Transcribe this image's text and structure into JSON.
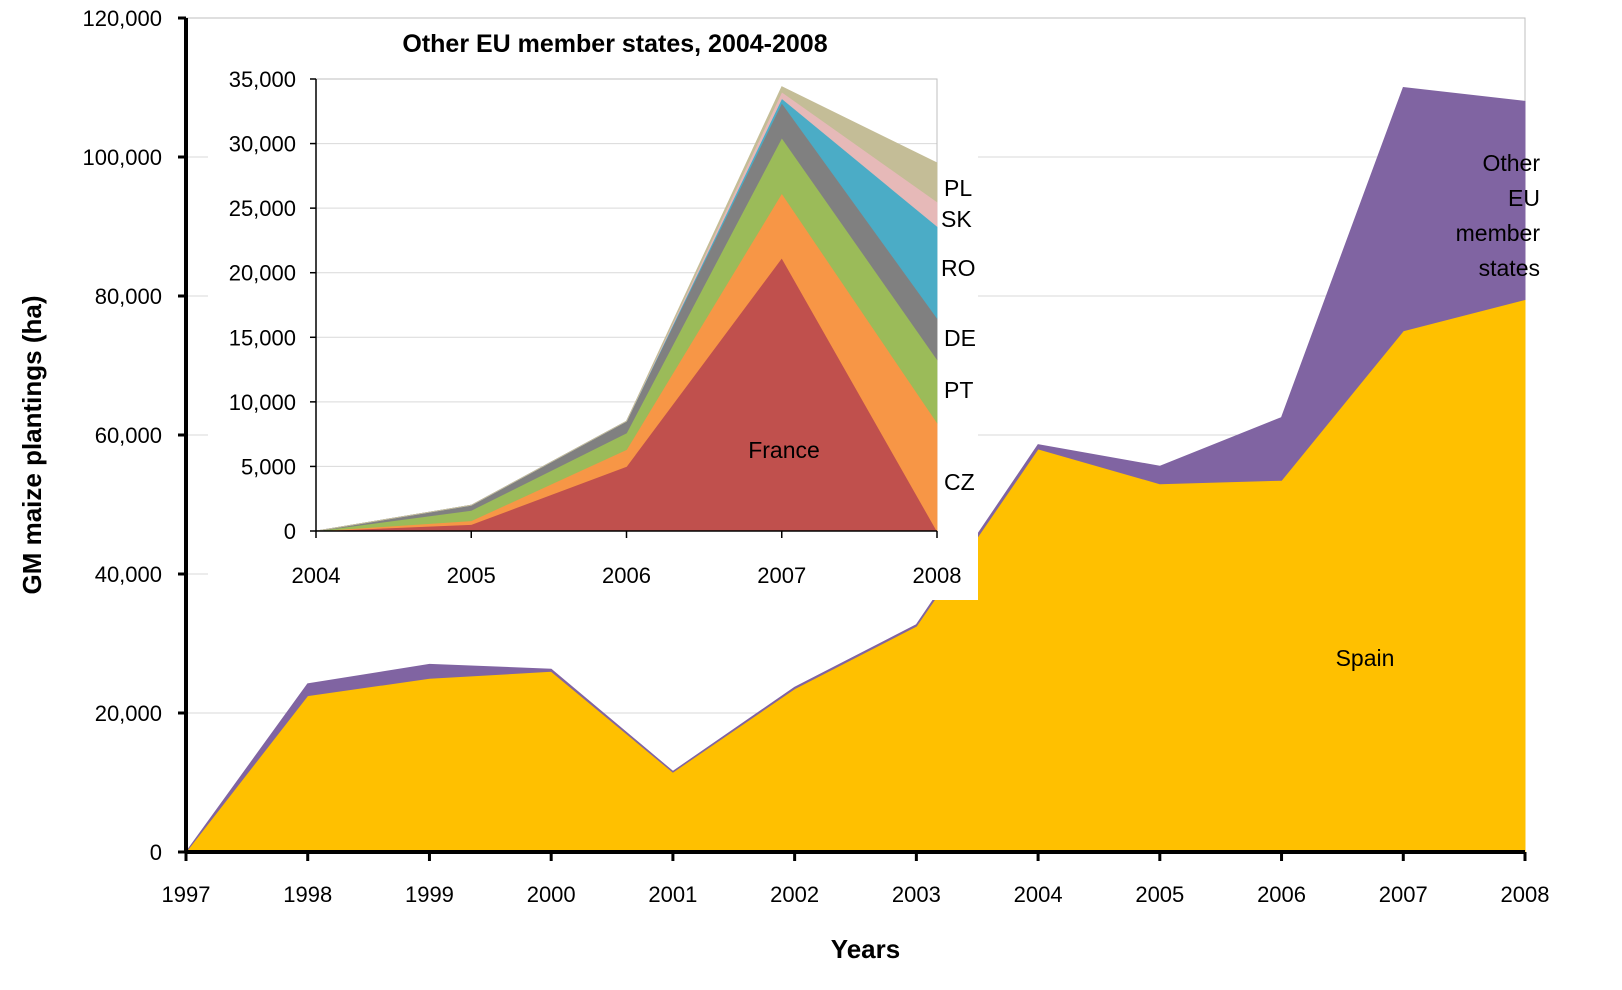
{
  "chart_data": [
    {
      "type": "area",
      "stacked": true,
      "title": "",
      "xlabel": "Years",
      "ylabel": "GM maize plantings (ha)",
      "categories": [
        "1997",
        "1998",
        "1999",
        "2000",
        "2001",
        "2002",
        "2003",
        "2004",
        "2005",
        "2006",
        "2007",
        "2008"
      ],
      "ylim": [
        0,
        120000
      ],
      "yticks": [
        "0",
        "20,000",
        "40,000",
        "60,000",
        "80,000",
        "100,000",
        "120,000"
      ],
      "grid": "horizontal",
      "series": [
        {
          "name": "Spain",
          "color": "#FFC000",
          "values": [
            0,
            22500,
            25000,
            26000,
            11500,
            23500,
            32500,
            58000,
            53000,
            53500,
            75000,
            79500
          ]
        },
        {
          "name": "Other EU member states",
          "color": "#8064A2",
          "values": [
            0,
            1700,
            2000,
            300,
            100,
            200,
            200,
            600,
            2500,
            9000,
            35000,
            28500
          ]
        }
      ],
      "labels": [
        {
          "series": "Spain",
          "lines": [
            "Spain"
          ]
        },
        {
          "series": "Other EU member states",
          "lines": [
            "Other",
            "EU",
            "member",
            "states"
          ]
        }
      ]
    },
    {
      "type": "area",
      "stacked": true,
      "title": "Other EU member states, 2004-2008",
      "categories": [
        "2004",
        "2005",
        "2006",
        "2007",
        "2008"
      ],
      "ylim": [
        0,
        35000
      ],
      "yticks": [
        "0",
        "5,000",
        "10,000",
        "15,000",
        "20,000",
        "25,000",
        "30,000",
        "35,000"
      ],
      "grid": "horizontal",
      "series": [
        {
          "name": "France",
          "color": "#C0504D",
          "values": [
            0,
            500,
            5000,
            21150,
            0
          ]
        },
        {
          "name": "CZ",
          "color": "#F79646",
          "values": [
            0,
            300,
            1300,
            5000,
            8400
          ]
        },
        {
          "name": "PT",
          "color": "#9BBB59",
          "values": [
            0,
            800,
            1300,
            4300,
            4900
          ]
        },
        {
          "name": "DE",
          "color": "#808080",
          "values": [
            0,
            400,
            900,
            2700,
            3200
          ]
        },
        {
          "name": "RO",
          "color": "#4BACC6",
          "values": [
            0,
            0,
            0,
            350,
            7100
          ]
        },
        {
          "name": "SK",
          "color": "#E6B9B8",
          "values": [
            0,
            0,
            0,
            500,
            1900
          ]
        },
        {
          "name": "PL",
          "color": "#C4BD97",
          "values": [
            0,
            0,
            0,
            400,
            3000
          ]
        }
      ],
      "labels": [
        {
          "series": "France",
          "lines": [
            "France"
          ]
        },
        {
          "series": "CZ",
          "lines": [
            "CZ"
          ]
        },
        {
          "series": "PT",
          "lines": [
            "PT"
          ]
        },
        {
          "series": "DE",
          "lines": [
            "DE"
          ]
        },
        {
          "series": "RO",
          "lines": [
            "RO"
          ]
        },
        {
          "series": "SK",
          "lines": [
            "SK"
          ]
        },
        {
          "series": "PL",
          "lines": [
            "PL"
          ]
        }
      ]
    }
  ]
}
